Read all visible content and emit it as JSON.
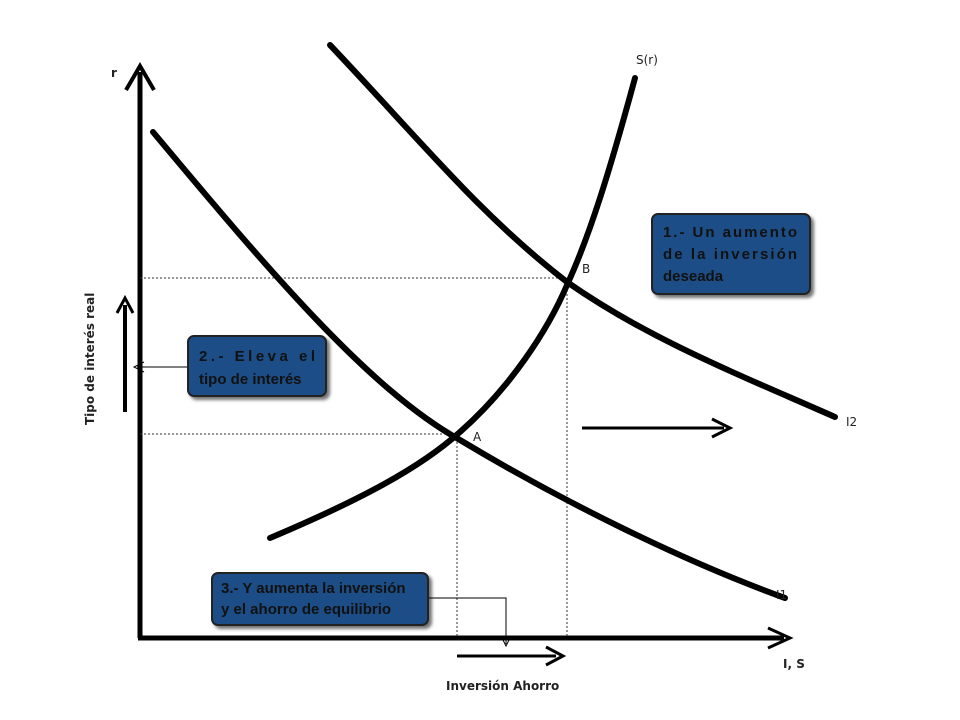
{
  "axes": {
    "y_symbol": "r",
    "y_label": "Tipo de interés real",
    "x_symbol": "I, S",
    "x_label": "Inversión Ahorro"
  },
  "curves": {
    "supply": "S(r)",
    "investment_1": "I1",
    "investment_2": "I2"
  },
  "points": {
    "a": "A",
    "b": "B"
  },
  "callouts": {
    "step1": [
      "1.- Un aumento",
      "de la inversión",
      "deseada"
    ],
    "step2": [
      "2.- Eleva el",
      "tipo de interés"
    ],
    "step3": [
      "3.- Y aumenta la inversión",
      "y el ahorro de equilibrio"
    ]
  },
  "colors": {
    "callout_fill": "#1f4e86",
    "curve": "#000000"
  }
}
